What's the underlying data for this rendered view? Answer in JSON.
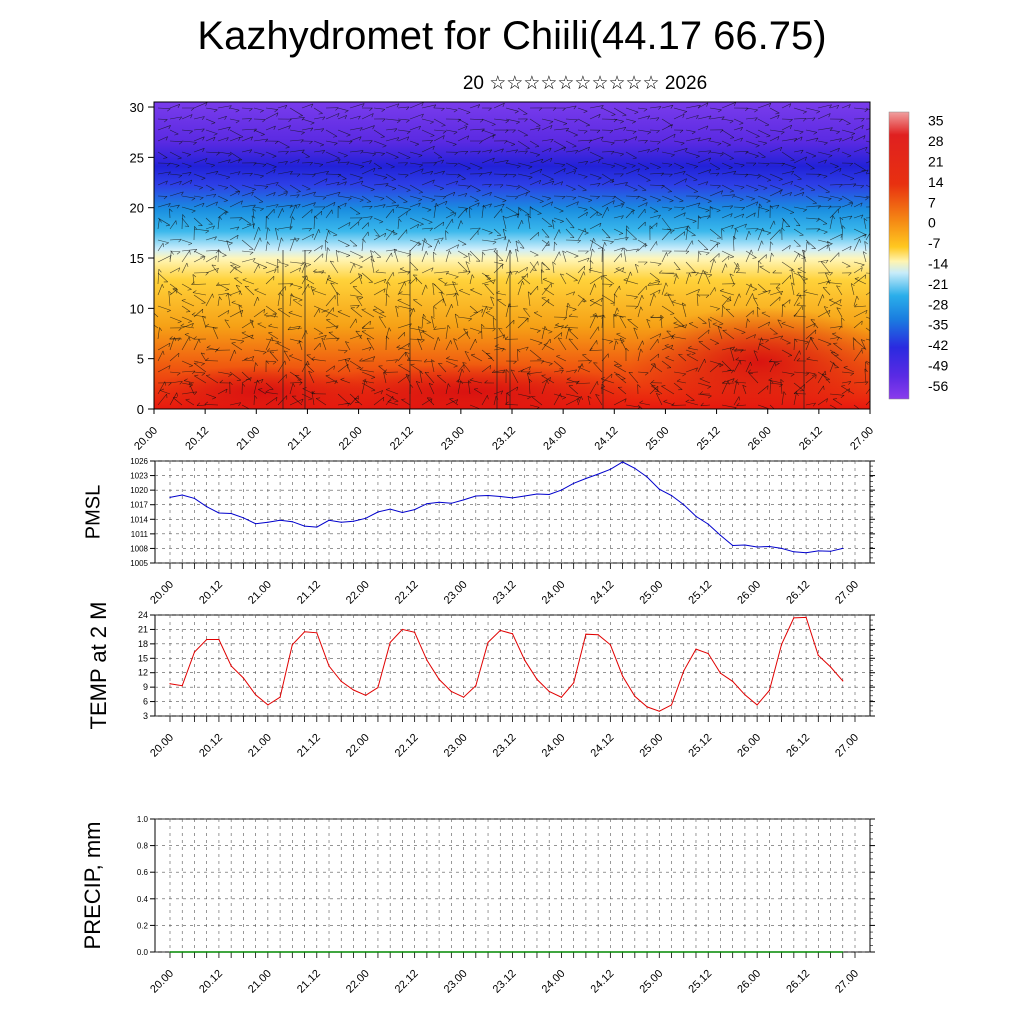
{
  "page": {
    "title": "Kazhydromet for Chiili(44.17 66.75)",
    "subtitle": "20 ☆☆☆☆☆☆☆☆☆☆ 2026"
  },
  "chart_data": [
    {
      "type": "heatmap",
      "title": "Kazhydromet for Chiili(44.17 66.75)",
      "subtitle": "20 ☆☆☆☆☆☆☆☆☆☆ 2026",
      "xlabel": "",
      "ylabel": "",
      "x_ticks": [
        "20.00",
        "20.12",
        "21.00",
        "21.12",
        "22.00",
        "22.12",
        "23.00",
        "23.12",
        "24.00",
        "24.12",
        "25.00",
        "25.12",
        "26.00",
        "26.12",
        "27.00"
      ],
      "y_ticks": [
        0,
        5,
        10,
        15,
        20,
        25,
        30
      ],
      "ylim": [
        0,
        30.5
      ],
      "colorbar_labels": [
        "35",
        "28",
        "21",
        "14",
        "7",
        "0",
        "-7",
        "-14",
        "-21",
        "-28",
        "-35",
        "-42",
        "-49",
        "-56"
      ],
      "color_scale": {
        "warm": "#e01818",
        "mid": "#ffe15a",
        "cool": "#1ea8e6",
        "cold": "#6a2be0"
      },
      "overlay": "wind barbs / arrows"
    },
    {
      "type": "line",
      "ylabel": "PMSL",
      "color": "#0000cc",
      "ylim": [
        1005,
        1026
      ],
      "y_ticks": [
        1005,
        1008,
        1011,
        1014,
        1017,
        1020,
        1023,
        1026
      ],
      "x_ticks": [
        "20.00",
        "20.12",
        "21.00",
        "21.12",
        "22.00",
        "22.12",
        "23.00",
        "23.12",
        "24.00",
        "24.12",
        "25.00",
        "25.12",
        "26.00",
        "26.12",
        "27.00"
      ],
      "x_hours": [
        0,
        3,
        6,
        9,
        12,
        15,
        18,
        21,
        24,
        27,
        30,
        33,
        36,
        39,
        42,
        45,
        48,
        51,
        54,
        57,
        60,
        63,
        66,
        69,
        72,
        75,
        78,
        81,
        84,
        87,
        90,
        93,
        96,
        99,
        102,
        105,
        108,
        111,
        114,
        117,
        120,
        123,
        126,
        129,
        132,
        135,
        138,
        141,
        144,
        147,
        150,
        153,
        156,
        159,
        162,
        165
      ],
      "values": [
        1018.5,
        1019,
        1018.3,
        1016.6,
        1015.3,
        1015.2,
        1014.3,
        1013.1,
        1013.4,
        1013.8,
        1013.5,
        1012.6,
        1012.4,
        1013.8,
        1013.4,
        1013.6,
        1014.2,
        1015.5,
        1016.1,
        1015.4,
        1016,
        1017.2,
        1017.5,
        1017.3,
        1018,
        1018.8,
        1018.9,
        1018.7,
        1018.4,
        1018.8,
        1019.2,
        1019.1,
        1020,
        1021.4,
        1022.4,
        1023.3,
        1024.3,
        1025.8,
        1024.5,
        1022.7,
        1020.2,
        1018.9,
        1017,
        1014.6,
        1013,
        1010.7,
        1008.6,
        1008.7,
        1008.3,
        1008.4,
        1008,
        1007.3,
        1007.1,
        1007.5,
        1007.4,
        1008
      ]
    },
    {
      "type": "line",
      "ylabel": "TEMP at 2 M",
      "color": "#e00000",
      "ylim": [
        3,
        24
      ],
      "y_ticks": [
        3,
        6,
        9,
        12,
        15,
        18,
        21,
        24
      ],
      "x_ticks": [
        "20.00",
        "20.12",
        "21.00",
        "21.12",
        "22.00",
        "22.12",
        "23.00",
        "23.12",
        "24.00",
        "24.12",
        "25.00",
        "25.12",
        "26.00",
        "26.12",
        "27.00"
      ],
      "x_hours": [
        0,
        3,
        6,
        9,
        12,
        15,
        18,
        21,
        24,
        27,
        30,
        33,
        36,
        39,
        42,
        45,
        48,
        51,
        54,
        57,
        60,
        63,
        66,
        69,
        72,
        75,
        78,
        81,
        84,
        87,
        90,
        93,
        96,
        99,
        102,
        105,
        108,
        111,
        114,
        117,
        120,
        123,
        126,
        129,
        132,
        135,
        138,
        141,
        144,
        147,
        150,
        153,
        156,
        159,
        162,
        165
      ],
      "values": [
        9.7,
        9.3,
        16.3,
        18.9,
        18.9,
        13.4,
        10.9,
        7.4,
        5.3,
        6.9,
        17.8,
        20.5,
        20.3,
        13.4,
        10.2,
        8.4,
        7.3,
        8.9,
        18.3,
        21,
        20.4,
        14.6,
        10.6,
        8.1,
        6.9,
        9.3,
        18.3,
        20.8,
        20.1,
        14.6,
        10.6,
        8.1,
        6.9,
        9.9,
        20,
        19.9,
        17.8,
        11.3,
        7.1,
        4.9,
        4,
        5.3,
        12.4,
        16.9,
        16,
        11.9,
        10.2,
        7.4,
        5.3,
        8.3,
        17.9,
        23.4,
        23.5,
        15.6,
        13.2,
        10.3
      ]
    },
    {
      "type": "line",
      "ylabel": "PRECIP, mm",
      "color": "#008800",
      "ylim": [
        0.0,
        1.0
      ],
      "y_ticks": [
        "0.0",
        "0.2",
        "0.4",
        "0.6",
        "0.8",
        "1.0"
      ],
      "x_ticks": [
        "20.00",
        "20.12",
        "21.00",
        "21.12",
        "22.00",
        "22.12",
        "23.00",
        "23.12",
        "24.00",
        "24.12",
        "25.00",
        "25.12",
        "26.00",
        "26.12",
        "27.00"
      ],
      "values": [
        0,
        0,
        0,
        0,
        0,
        0,
        0,
        0,
        0,
        0,
        0,
        0,
        0,
        0,
        0,
        0,
        0,
        0,
        0,
        0,
        0,
        0,
        0,
        0,
        0,
        0,
        0,
        0,
        0,
        0,
        0,
        0,
        0,
        0,
        0,
        0,
        0,
        0,
        0,
        0,
        0,
        0,
        0,
        0,
        0,
        0,
        0,
        0,
        0,
        0,
        0,
        0,
        0,
        0,
        0,
        0
      ]
    }
  ]
}
